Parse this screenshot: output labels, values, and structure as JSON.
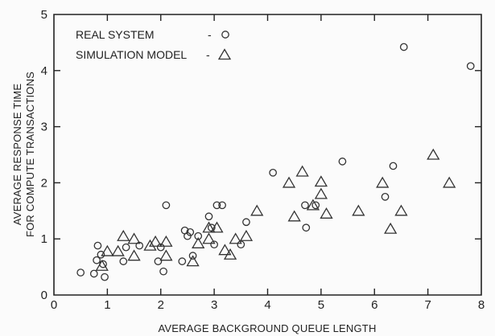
{
  "chart_data": {
    "type": "scatter",
    "title": "",
    "xlabel": "AVERAGE BACKGROUND QUEUE LENGTH",
    "ylabel": [
      "AVERAGE RESPONSE TIME",
      "FOR COMPUTE TRANSACTIONS"
    ],
    "xlim": [
      0,
      8
    ],
    "ylim": [
      0,
      5
    ],
    "xticks": [
      "0",
      "1",
      "2",
      "3",
      "4",
      "5",
      "6",
      "7",
      "8"
    ],
    "yticks": [
      "0",
      "1",
      "2",
      "3",
      "4",
      "5"
    ],
    "grid": false,
    "legend_position": "top-left",
    "series": [
      {
        "name": "REAL SYSTEM",
        "legend_label": "REAL SYSTEM",
        "legend_sep": "- ",
        "marker": "circle",
        "points": [
          [
            0.5,
            0.4
          ],
          [
            0.75,
            0.38
          ],
          [
            0.8,
            0.62
          ],
          [
            0.82,
            0.88
          ],
          [
            0.88,
            0.72
          ],
          [
            0.92,
            0.55
          ],
          [
            0.95,
            0.32
          ],
          [
            1.3,
            0.6
          ],
          [
            1.35,
            0.85
          ],
          [
            1.6,
            0.88
          ],
          [
            1.95,
            0.6
          ],
          [
            2.0,
            0.85
          ],
          [
            2.05,
            0.42
          ],
          [
            2.1,
            1.6
          ],
          [
            2.4,
            0.6
          ],
          [
            2.45,
            1.15
          ],
          [
            2.5,
            1.05
          ],
          [
            2.55,
            1.12
          ],
          [
            2.6,
            0.7
          ],
          [
            2.7,
            1.05
          ],
          [
            2.9,
            1.4
          ],
          [
            2.95,
            1.2
          ],
          [
            3.0,
            0.9
          ],
          [
            3.05,
            1.6
          ],
          [
            3.15,
            1.6
          ],
          [
            3.5,
            0.9
          ],
          [
            3.6,
            1.3
          ],
          [
            4.1,
            2.18
          ],
          [
            4.7,
            1.6
          ],
          [
            4.72,
            1.2
          ],
          [
            4.9,
            1.6
          ],
          [
            5.4,
            2.38
          ],
          [
            6.2,
            1.75
          ],
          [
            6.35,
            2.3
          ],
          [
            6.55,
            4.42
          ],
          [
            7.8,
            4.08
          ]
        ]
      },
      {
        "name": "SIMULATION MODEL",
        "legend_label": "SIMULATION MODEL",
        "legend_sep": "- ",
        "marker": "triangle",
        "points": [
          [
            0.9,
            0.52
          ],
          [
            1.0,
            0.78
          ],
          [
            1.2,
            0.78
          ],
          [
            1.3,
            1.05
          ],
          [
            1.5,
            1.0
          ],
          [
            1.5,
            0.7
          ],
          [
            1.8,
            0.88
          ],
          [
            1.9,
            0.95
          ],
          [
            2.1,
            0.95
          ],
          [
            2.1,
            0.7
          ],
          [
            2.6,
            0.6
          ],
          [
            2.7,
            0.92
          ],
          [
            2.9,
            1.0
          ],
          [
            2.9,
            1.2
          ],
          [
            3.05,
            1.2
          ],
          [
            3.2,
            0.8
          ],
          [
            3.3,
            0.72
          ],
          [
            3.4,
            1.0
          ],
          [
            3.6,
            1.05
          ],
          [
            3.8,
            1.5
          ],
          [
            4.4,
            2.0
          ],
          [
            4.5,
            1.4
          ],
          [
            4.65,
            2.2
          ],
          [
            4.85,
            1.6
          ],
          [
            5.0,
            2.02
          ],
          [
            5.0,
            1.8
          ],
          [
            5.1,
            1.45
          ],
          [
            5.7,
            1.5
          ],
          [
            6.15,
            2.0
          ],
          [
            6.3,
            1.18
          ],
          [
            6.5,
            1.5
          ],
          [
            7.1,
            2.5
          ],
          [
            7.4,
            2.0
          ]
        ]
      }
    ]
  }
}
